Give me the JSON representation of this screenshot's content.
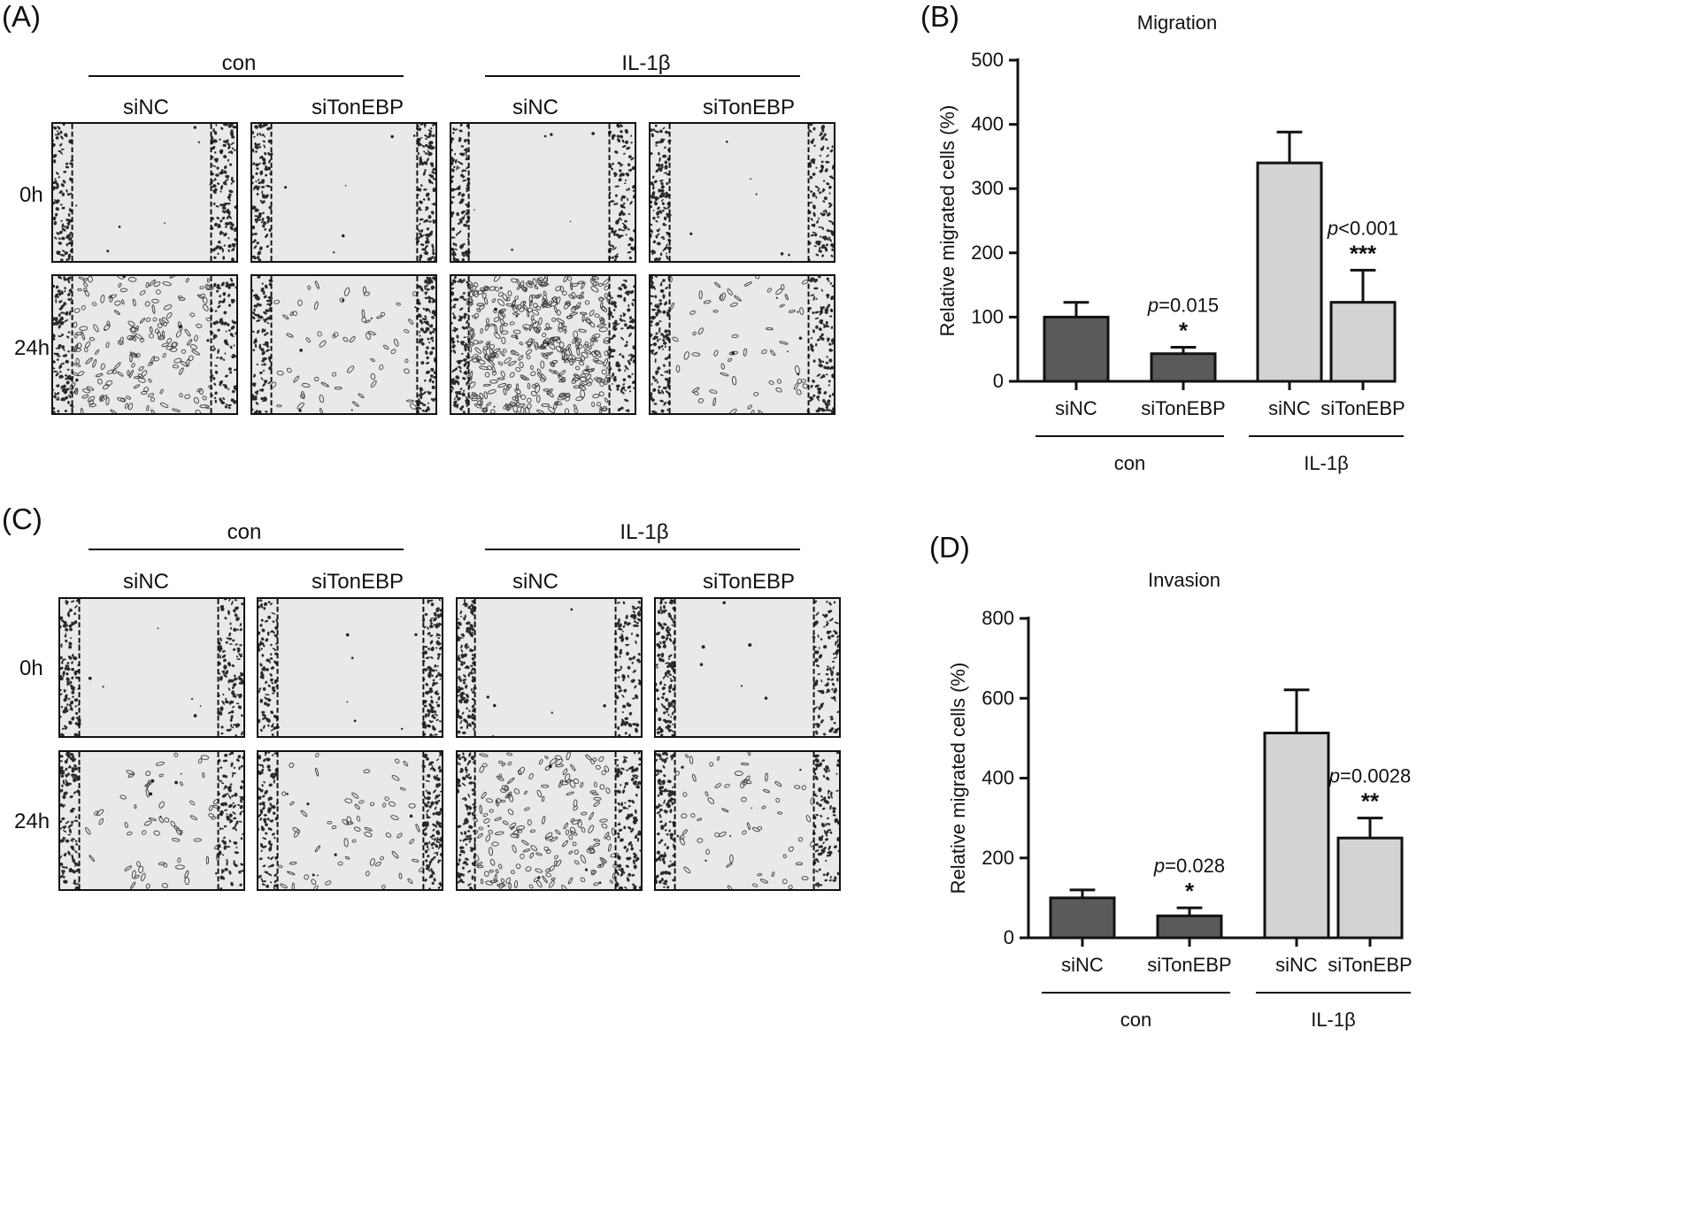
{
  "panels": {
    "A": {
      "letter": "(A)",
      "groups": [
        "con",
        "IL-1β"
      ],
      "columns": [
        "siNC",
        "siTonEBP",
        "siNC",
        "siTonEBP"
      ],
      "rows": [
        "0h",
        "24h"
      ],
      "images": [
        {
          "label": "A con siNC 0h",
          "density": "sparse"
        },
        {
          "label": "A con siTonEBP 0h",
          "density": "sparse"
        },
        {
          "label": "A IL-1β siNC 0h",
          "density": "sparse"
        },
        {
          "label": "A IL-1β siTonEBP 0h",
          "density": "sparse"
        },
        {
          "label": "A con siNC 24h",
          "density": "medium"
        },
        {
          "label": "A con siTonEBP 24h",
          "density": "low"
        },
        {
          "label": "A IL-1β siNC 24h",
          "density": "high"
        },
        {
          "label": "A IL-1β siTonEBP 24h",
          "density": "low"
        }
      ]
    },
    "B": {
      "letter": "(B)"
    },
    "C": {
      "letter": "(C)",
      "groups": [
        "con",
        "IL-1β"
      ],
      "columns": [
        "siNC",
        "siTonEBP",
        "siNC",
        "siTonEBP"
      ],
      "rows": [
        "0h",
        "24h"
      ],
      "images": [
        {
          "label": "C con siNC 0h",
          "density": "sparse"
        },
        {
          "label": "C con siTonEBP 0h",
          "density": "sparse"
        },
        {
          "label": "C IL-1β siNC 0h",
          "density": "sparse"
        },
        {
          "label": "C IL-1β siTonEBP 0h",
          "density": "sparse"
        },
        {
          "label": "C con siNC 24h",
          "density": "low"
        },
        {
          "label": "C con siTonEBP 24h",
          "density": "low"
        },
        {
          "label": "C IL-1β siNC 24h",
          "density": "medium"
        },
        {
          "label": "C IL-1β siTonEBP 24h",
          "density": "low"
        }
      ]
    },
    "D": {
      "letter": "(D)"
    }
  },
  "chart_data": [
    {
      "id": "B",
      "type": "bar",
      "title": "Migration",
      "ylabel": "Relative migrated cells (%)",
      "categories": [
        "siNC",
        "siTonEBP",
        "siNC",
        "siTonEBP"
      ],
      "groups": [
        "con",
        "IL-1β"
      ],
      "values": [
        100,
        43,
        340,
        123
      ],
      "errors": [
        23,
        10,
        48,
        50
      ],
      "ylim": [
        0,
        500
      ],
      "yticks": [
        0,
        100,
        200,
        300,
        400,
        500
      ],
      "colors": [
        "#5a5a5a",
        "#5a5a5a",
        "#d3d3d3",
        "#d3d3d3"
      ],
      "annotations": [
        {
          "bar": 1,
          "p": "p",
          "rest": "=0.015",
          "stars": "*"
        },
        {
          "bar": 3,
          "p": "p",
          "rest": "<0.001",
          "stars": "***"
        }
      ]
    },
    {
      "id": "D",
      "type": "bar",
      "title": "Invasion",
      "ylabel": "Relative migrated cells (%)",
      "categories": [
        "siNC",
        "siTonEBP",
        "siNC",
        "siTonEBP"
      ],
      "groups": [
        "con",
        "IL-1β"
      ],
      "values": [
        100,
        55,
        513,
        250
      ],
      "errors": [
        20,
        20,
        108,
        50
      ],
      "ylim": [
        0,
        800
      ],
      "yticks": [
        0,
        200,
        400,
        600,
        800
      ],
      "colors": [
        "#5a5a5a",
        "#5a5a5a",
        "#d3d3d3",
        "#d3d3d3"
      ],
      "annotations": [
        {
          "bar": 1,
          "p": "p",
          "rest": "=0.028",
          "stars": "*"
        },
        {
          "bar": 3,
          "p": "p",
          "rest": "=0.0028",
          "stars": "**"
        }
      ]
    }
  ]
}
